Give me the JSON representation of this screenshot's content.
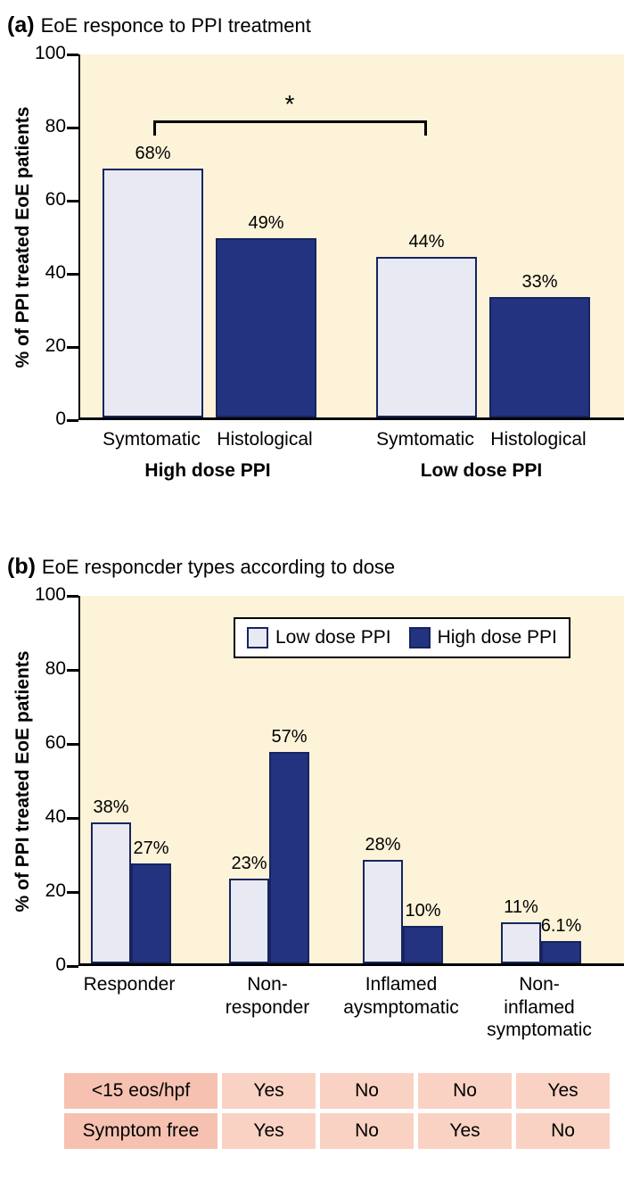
{
  "colors": {
    "plot_bg": "#fcf3d9",
    "light_bar": "#e9e9f4",
    "dark_bar": "#233380",
    "bar_border": "#16255f",
    "axis": "#000000",
    "table_label_bg": "#f6c1b0",
    "table_cell_bg": "#f9d2c3"
  },
  "chart_data": [
    {
      "type": "bar",
      "panel_tag": "(a)",
      "title": "EoE responce to PPI treatment",
      "ylabel": "% of PPI treated EoE patients",
      "ylim": [
        0,
        100
      ],
      "yticks": [
        0,
        20,
        40,
        60,
        80,
        100
      ],
      "grid": false,
      "categories": [
        "Symtomatic",
        "Histological",
        "Symtomatic",
        "Histological"
      ],
      "values": [
        68,
        49,
        44,
        33
      ],
      "value_labels": [
        "68%",
        "49%",
        "44%",
        "33%"
      ],
      "bar_styles": [
        "light",
        "dark",
        "light",
        "dark"
      ],
      "group_labels": [
        "High dose PPI",
        "Low dose PPI"
      ],
      "significance": {
        "label": "*",
        "from": 0,
        "to": 2,
        "y": 82
      }
    },
    {
      "type": "bar",
      "panel_tag": "(b)",
      "title": "EoE responcder types according to dose",
      "ylabel": "% of PPI treated EoE patients",
      "ylim": [
        0,
        100
      ],
      "yticks": [
        0,
        20,
        40,
        60,
        80,
        100
      ],
      "grid": false,
      "legend_position": "top",
      "categories": [
        "Responder",
        "Non-\nresponder",
        "Inflamed\naysmptomatic",
        "Non-\ninflamed\nsymptomatic"
      ],
      "series": [
        {
          "name": "Low dose PPI",
          "style": "light",
          "values": [
            38,
            23,
            28,
            11
          ],
          "value_labels": [
            "38%",
            "23%",
            "28%",
            "11%"
          ]
        },
        {
          "name": "High dose PPI",
          "style": "dark",
          "values": [
            27,
            57,
            10,
            6.1
          ],
          "value_labels": [
            "27%",
            "57%",
            "10%",
            "6.1%"
          ]
        }
      ]
    }
  ],
  "table": {
    "rows": [
      {
        "label": "<15 eos/hpf",
        "values": [
          "Yes",
          "No",
          "No",
          "Yes"
        ]
      },
      {
        "label": "Symptom free",
        "values": [
          "Yes",
          "No",
          "Yes",
          "No"
        ]
      }
    ]
  }
}
